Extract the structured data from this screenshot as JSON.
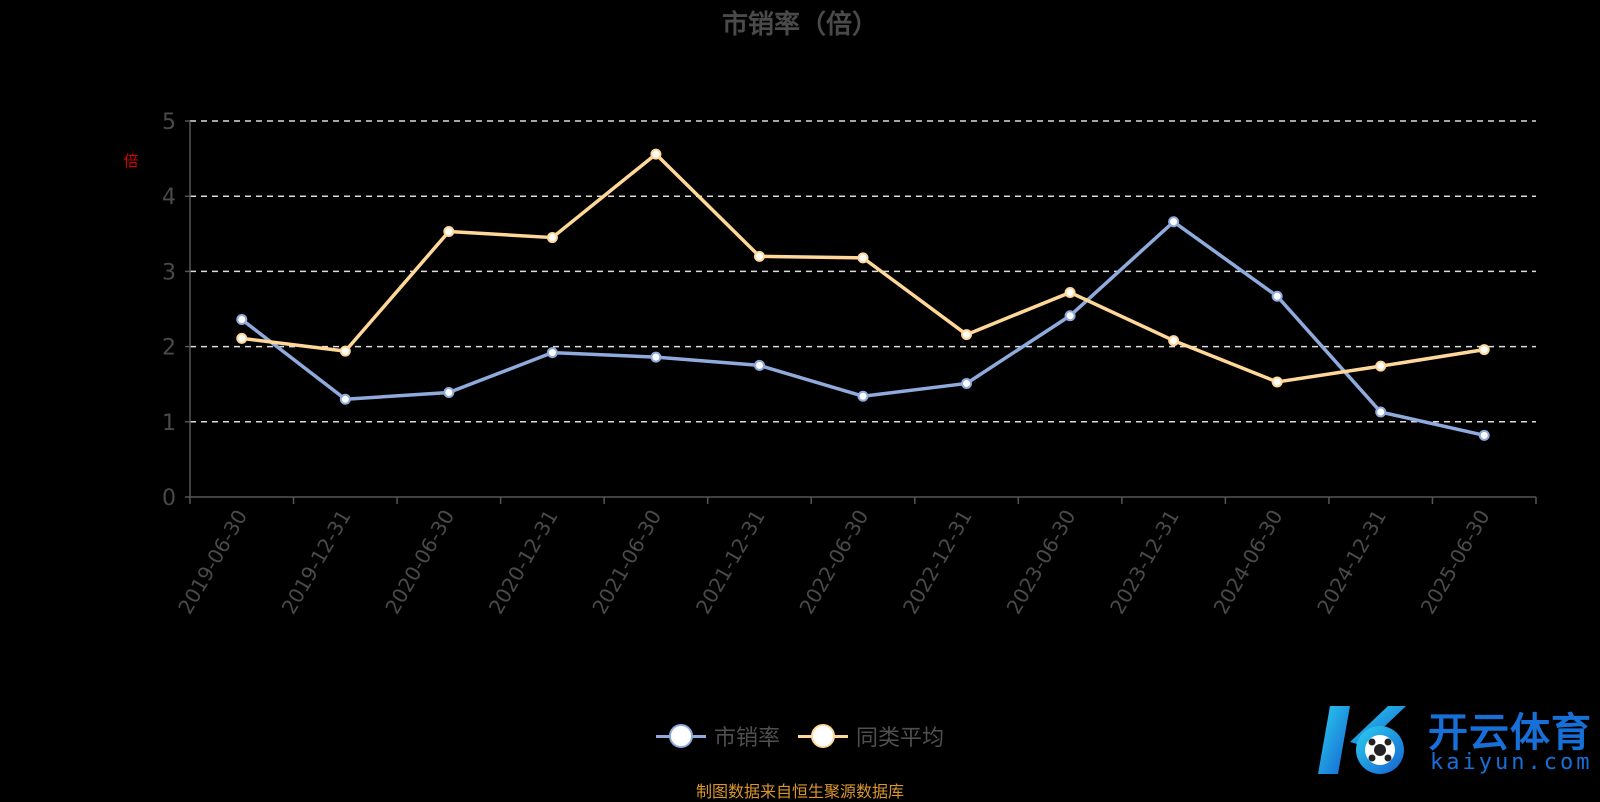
{
  "chart_data": {
    "type": "line",
    "title": "市销率（倍）",
    "ylabel": "倍",
    "ylim": [
      0,
      5
    ],
    "yticks": [
      "0",
      "1",
      "2",
      "3",
      "4",
      "5"
    ],
    "grid": true,
    "categories": [
      "2019-06-30",
      "2019-12-31",
      "2020-06-30",
      "2020-12-31",
      "2021-06-30",
      "2021-12-31",
      "2022-06-30",
      "2022-12-31",
      "2023-06-30",
      "2023-12-31",
      "2024-06-30",
      "2024-12-31",
      "2025-06-30"
    ],
    "series": [
      {
        "name": "市销率",
        "color": "#8faadc",
        "values": [
          2.36,
          1.3,
          1.39,
          1.92,
          1.86,
          1.75,
          1.34,
          1.51,
          2.41,
          3.66,
          2.67,
          1.13,
          0.82
        ]
      },
      {
        "name": "同类平均",
        "color": "#ffd899",
        "values": [
          2.11,
          1.94,
          3.53,
          3.45,
          4.56,
          3.2,
          3.18,
          2.16,
          2.72,
          2.08,
          1.53,
          1.74,
          1.96
        ]
      }
    ],
    "legend_position": "bottom"
  },
  "source_note": "制图数据来自恒生聚源数据库",
  "watermark": {
    "cn": "开云体育",
    "en": "kaiyun.com"
  }
}
